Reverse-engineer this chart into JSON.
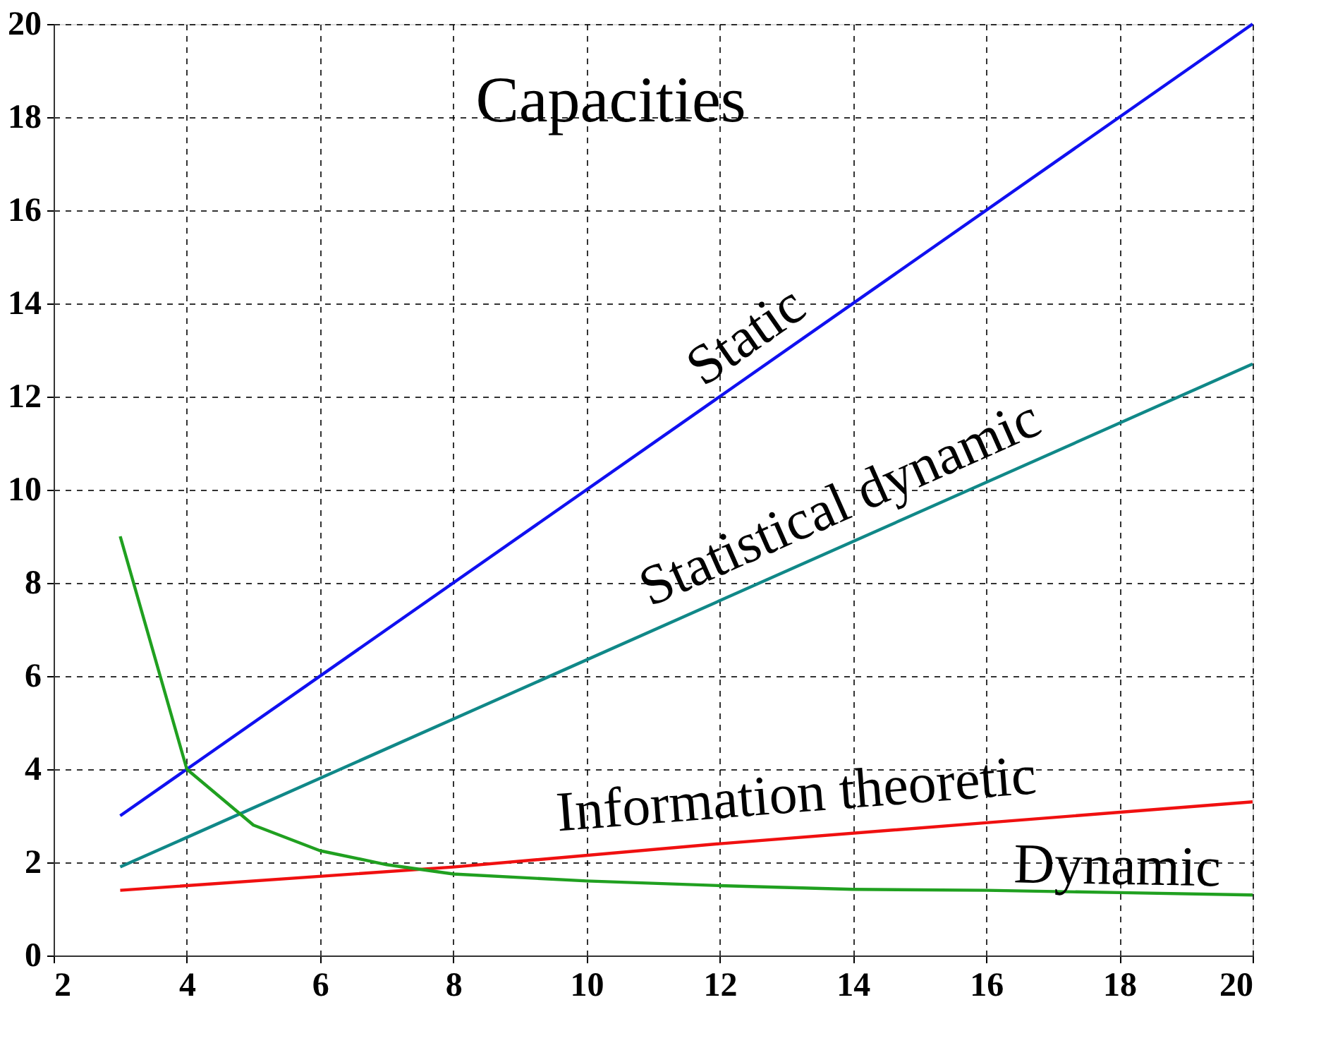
{
  "chart_data": {
    "type": "line",
    "title": "Capacities",
    "xlim": [
      2,
      20
    ],
    "ylim": [
      0,
      20
    ],
    "xticks": [
      2,
      4,
      6,
      8,
      10,
      12,
      14,
      16,
      18,
      20
    ],
    "yticks": [
      0,
      2,
      4,
      6,
      8,
      10,
      12,
      14,
      16,
      18,
      20
    ],
    "grid": true,
    "line_style": "solid",
    "series": [
      {
        "name": "Static",
        "color": "#1010f0",
        "x": [
          3,
          20
        ],
        "values": [
          3,
          20
        ]
      },
      {
        "name": "Statistical dynamic",
        "color": "#108888",
        "x": [
          3,
          20
        ],
        "values": [
          1.9,
          12.7
        ]
      },
      {
        "name": "Information theoretic",
        "color": "#f01010",
        "x": [
          3,
          8,
          12,
          16,
          20
        ],
        "values": [
          1.4,
          1.9,
          2.4,
          2.85,
          3.3
        ]
      },
      {
        "name": "Dynamic",
        "color": "#20a020",
        "x": [
          3,
          4,
          5,
          6,
          7,
          8,
          10,
          12,
          14,
          16,
          18,
          20
        ],
        "values": [
          9,
          4,
          2.8,
          2.25,
          1.95,
          1.75,
          1.6,
          1.5,
          1.42,
          1.4,
          1.35,
          1.3
        ]
      }
    ]
  }
}
